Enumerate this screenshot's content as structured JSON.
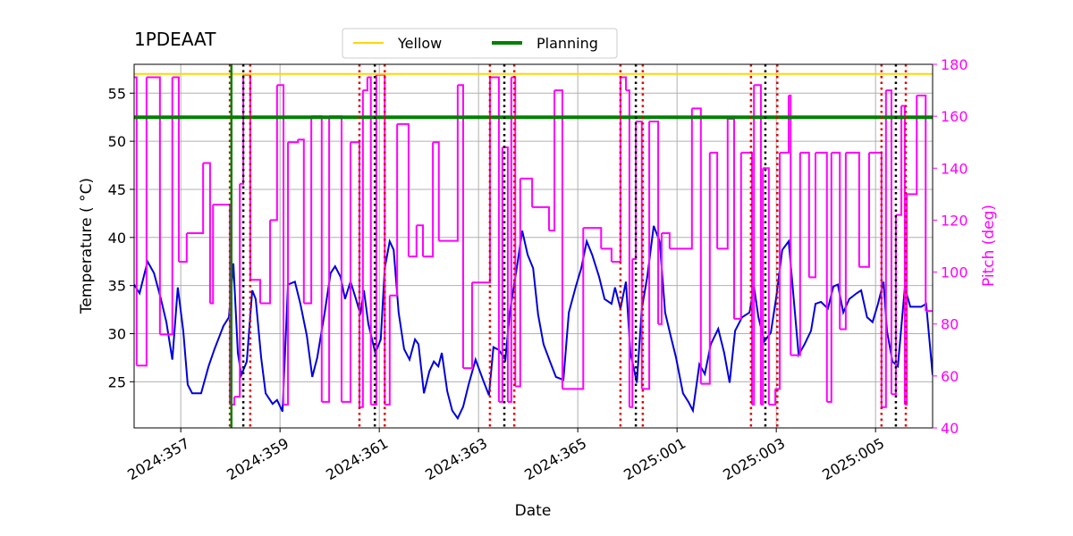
{
  "chart_data": {
    "type": "line",
    "title": "1PDEAAT",
    "x_label": "Date",
    "y_label": "Temperature ( °C)",
    "y2_label": "Pitch (deg)",
    "xlim": [
      356.06,
      372.15
    ],
    "xticks": [
      {
        "value": 357,
        "label": "2024:357"
      },
      {
        "value": 359,
        "label": "2024:359"
      },
      {
        "value": 361,
        "label": "2024:361"
      },
      {
        "value": 363,
        "label": "2024:363"
      },
      {
        "value": 365,
        "label": "2024:365"
      },
      {
        "value": 367,
        "label": "2025:001"
      },
      {
        "value": 369,
        "label": "2025:003"
      },
      {
        "value": 371,
        "label": "2025:005"
      }
    ],
    "ylim": [
      20.2,
      58.0
    ],
    "yticks": [
      25,
      30,
      35,
      40,
      45,
      50,
      55
    ],
    "y2lim": [
      40,
      180
    ],
    "y2ticks": [
      40,
      60,
      80,
      100,
      120,
      140,
      160,
      180
    ],
    "grid": true,
    "legend_position": "top",
    "hlines": [
      {
        "name": "Yellow",
        "color": "#ffd700",
        "value": 57
      },
      {
        "name": "Planning",
        "color": "#008000",
        "value": 52.5
      }
    ],
    "vlines": [
      {
        "x": 357.99,
        "color": "#e00000",
        "style": "dotted"
      },
      {
        "x": 358.02,
        "color": "#008000",
        "style": "solid"
      },
      {
        "x": 358.26,
        "color": "#000000",
        "style": "dotted"
      },
      {
        "x": 358.4,
        "color": "#e00000",
        "style": "dotted"
      },
      {
        "x": 360.6,
        "color": "#e00000",
        "style": "dotted"
      },
      {
        "x": 360.91,
        "color": "#000000",
        "style": "dotted"
      },
      {
        "x": 361.11,
        "color": "#e00000",
        "style": "dotted"
      },
      {
        "x": 363.23,
        "color": "#e00000",
        "style": "dotted"
      },
      {
        "x": 363.52,
        "color": "#000000",
        "style": "dotted"
      },
      {
        "x": 363.72,
        "color": "#e00000",
        "style": "dotted"
      },
      {
        "x": 365.86,
        "color": "#e00000",
        "style": "dotted"
      },
      {
        "x": 366.17,
        "color": "#000000",
        "style": "dotted"
      },
      {
        "x": 366.31,
        "color": "#e00000",
        "style": "dotted"
      },
      {
        "x": 368.49,
        "color": "#e00000",
        "style": "dotted"
      },
      {
        "x": 368.78,
        "color": "#000000",
        "style": "dotted"
      },
      {
        "x": 369.02,
        "color": "#e00000",
        "style": "dotted"
      },
      {
        "x": 371.12,
        "color": "#e00000",
        "style": "dotted"
      },
      {
        "x": 371.41,
        "color": "#000000",
        "style": "dotted"
      },
      {
        "x": 371.61,
        "color": "#e00000",
        "style": "dotted"
      }
    ],
    "series": [
      {
        "color": "#0000dd",
        "step": false,
        "x": [
          356.06,
          356.17,
          356.33,
          356.46,
          356.6,
          356.71,
          356.83,
          356.94,
          357.05,
          357.14,
          357.23,
          357.41,
          357.56,
          357.68,
          357.86,
          357.97,
          358.06,
          358.15,
          358.22,
          358.33,
          358.44,
          358.51,
          358.62,
          358.71,
          358.85,
          358.94,
          359.05,
          359.16,
          359.3,
          359.41,
          359.54,
          359.65,
          359.75,
          359.9,
          360.02,
          360.11,
          360.22,
          360.31,
          360.42,
          360.53,
          360.62,
          360.69,
          360.78,
          360.92,
          361.03,
          361.11,
          361.21,
          361.29,
          361.39,
          361.5,
          361.61,
          361.72,
          361.79,
          361.9,
          362.01,
          362.1,
          362.19,
          362.26,
          362.37,
          362.47,
          362.58,
          362.69,
          362.8,
          362.94,
          363.09,
          363.21,
          363.3,
          363.41,
          363.54,
          363.63,
          363.77,
          363.88,
          363.99,
          364.1,
          364.2,
          364.31,
          364.44,
          364.56,
          364.71,
          364.82,
          364.96,
          365.07,
          365.18,
          365.29,
          365.43,
          365.54,
          365.68,
          365.75,
          365.86,
          365.97,
          366.06,
          366.19,
          366.29,
          366.4,
          366.53,
          366.65,
          366.76,
          366.87,
          366.98,
          367.12,
          367.23,
          367.32,
          367.45,
          367.56,
          367.68,
          367.83,
          367.95,
          368.06,
          368.17,
          368.31,
          368.46,
          368.55,
          368.64,
          368.76,
          368.89,
          369.0,
          369.12,
          369.25,
          369.36,
          369.45,
          369.57,
          369.7,
          369.79,
          369.9,
          370.04,
          370.15,
          370.24,
          370.35,
          370.47,
          370.62,
          370.71,
          370.83,
          370.94,
          371.05,
          371.16,
          371.23,
          371.34,
          371.45,
          371.59,
          371.7,
          371.92,
          372.02,
          372.15
        ],
        "values": [
          35.1,
          34.2,
          37.5,
          36.3,
          33.6,
          31.2,
          27.3,
          34.8,
          30.3,
          24.7,
          23.8,
          23.8,
          26.6,
          28.4,
          30.8,
          31.7,
          37.3,
          28.0,
          25.7,
          27.1,
          34.5,
          33.6,
          27.5,
          23.8,
          22.7,
          23.1,
          21.9,
          35.1,
          35.4,
          33.1,
          29.8,
          25.5,
          27.5,
          32.2,
          36.3,
          37.0,
          35.9,
          33.6,
          35.4,
          33.6,
          32.0,
          34.5,
          31.0,
          28.0,
          29.4,
          36.8,
          39.6,
          38.7,
          32.2,
          28.4,
          27.3,
          29.4,
          28.9,
          23.8,
          26.1,
          27.1,
          26.6,
          28.0,
          24.0,
          22.0,
          21.2,
          22.4,
          24.7,
          27.3,
          25.2,
          23.6,
          28.6,
          28.3,
          27.3,
          32.2,
          36.8,
          40.7,
          38.2,
          36.8,
          32.0,
          28.9,
          27.1,
          25.5,
          25.2,
          32.2,
          34.9,
          36.8,
          39.6,
          38.2,
          35.9,
          33.6,
          33.1,
          34.8,
          32.6,
          35.4,
          28.0,
          24.9,
          32.6,
          35.9,
          41.2,
          39.6,
          32.2,
          29.8,
          27.5,
          23.8,
          22.9,
          22.0,
          26.8,
          25.8,
          28.9,
          30.5,
          28.0,
          24.9,
          30.3,
          31.7,
          32.2,
          34.9,
          31.7,
          29.2,
          30.1,
          33.8,
          38.7,
          39.6,
          33.1,
          27.8,
          28.9,
          30.3,
          33.1,
          33.3,
          32.6,
          34.9,
          35.1,
          32.2,
          33.6,
          34.2,
          34.5,
          31.7,
          31.2,
          33.1,
          35.4,
          30.3,
          27.1,
          26.6,
          34.8,
          32.8,
          32.8,
          33.1,
          25.7
        ]
      },
      {
        "color": "#ff00ff",
        "axis": "y2",
        "step": true,
        "x": [
          356.06,
          356.11,
          356.31,
          356.58,
          356.83,
          356.96,
          357.12,
          357.45,
          357.59,
          357.65,
          357.99,
          358.08,
          358.19,
          358.26,
          358.4,
          358.6,
          358.8,
          358.94,
          359.07,
          359.16,
          359.36,
          359.48,
          359.63,
          359.84,
          359.99,
          360.24,
          360.42,
          360.6,
          360.67,
          360.76,
          360.83,
          360.94,
          361.11,
          361.21,
          361.36,
          361.59,
          361.75,
          361.88,
          362.08,
          362.2,
          362.58,
          362.69,
          362.87,
          363.23,
          363.41,
          363.48,
          363.59,
          363.66,
          363.74,
          363.84,
          364.08,
          364.42,
          364.53,
          364.69,
          365.11,
          365.47,
          365.68,
          365.86,
          365.97,
          366.04,
          366.1,
          366.17,
          366.29,
          366.44,
          366.62,
          366.69,
          366.85,
          367.3,
          367.48,
          367.66,
          367.81,
          368.02,
          368.15,
          368.29,
          368.51,
          368.55,
          368.69,
          368.73,
          368.85,
          368.98,
          369.07,
          369.25,
          369.29,
          369.48,
          369.66,
          369.79,
          370.02,
          370.11,
          370.28,
          370.4,
          370.67,
          370.87,
          371.12,
          371.21,
          371.32,
          371.41,
          371.52,
          371.59,
          371.63,
          371.83,
          372.01
        ],
        "values": [
          175,
          64,
          175,
          76,
          175,
          104,
          115,
          142,
          88,
          126,
          49,
          52,
          134,
          176,
          97,
          88,
          120,
          172,
          49,
          150,
          151,
          88,
          160,
          50,
          160,
          50,
          150,
          48,
          170,
          175,
          49,
          176,
          49,
          91,
          157,
          106,
          118,
          106,
          150,
          112,
          172,
          63,
          96,
          175,
          50,
          148,
          50,
          175,
          56,
          136,
          125,
          116,
          170,
          55,
          117,
          109,
          104,
          175,
          170,
          48,
          105,
          158,
          55,
          158,
          80,
          115,
          109,
          163,
          57,
          146,
          109,
          159,
          82,
          146,
          49,
          172,
          49,
          140,
          49,
          55,
          146,
          168,
          68,
          146,
          98,
          146,
          50,
          146,
          78,
          146,
          102,
          146,
          48,
          170,
          53,
          122,
          164,
          49,
          130,
          168,
          85
        ]
      }
    ]
  }
}
